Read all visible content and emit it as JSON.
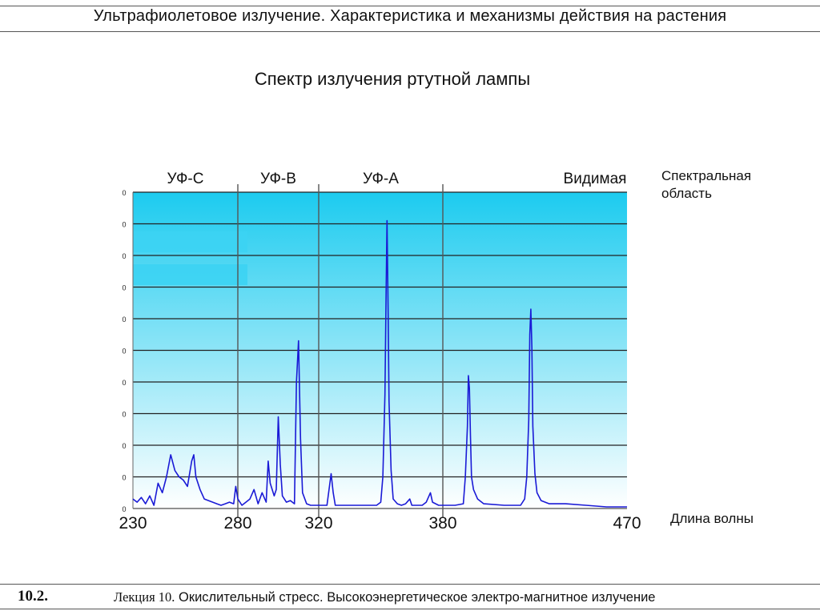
{
  "header": {
    "title": "Ультрафиолетовое излучение. Характеристика и механизмы действия на растения"
  },
  "chart_title": "Спектр излучения ртутной лампы",
  "labels": {
    "region_axis": "Спектральная\nобласть",
    "wavelength_axis": "Длина волны"
  },
  "footer": {
    "number": "10.2.",
    "lecture": "Лекция 10.",
    "topic": "Окислительный стресс. Высокоэнергетическое электро-магнитное излучение"
  },
  "colors": {
    "band_top": "#1ccbef",
    "band_bottom": "#ffffff",
    "spectrum_line": "#1a1ad6",
    "grid": "#222222"
  },
  "chart_data": {
    "type": "line",
    "title": "Спектр излучения ртутной лампы",
    "xlabel": "Длина волны",
    "ylabel": "",
    "xlim": [
      230,
      470
    ],
    "ylim": [
      0,
      10
    ],
    "x_ticks": [
      "230",
      "280",
      "320",
      "380",
      "470"
    ],
    "y_tick_label": "0",
    "y_ticks_count": 11,
    "grid": true,
    "regions": [
      {
        "name": "УФ-С",
        "from": 230,
        "to": 280
      },
      {
        "name": "УФ-В",
        "from": 280,
        "to": 320
      },
      {
        "name": "УФ-А",
        "from": 320,
        "to": 380
      },
      {
        "name": "Видимая",
        "from": 380,
        "to": 470
      }
    ],
    "series": [
      {
        "points": [
          [
            230,
            0.3
          ],
          [
            232,
            0.2
          ],
          [
            234,
            0.35
          ],
          [
            236,
            0.15
          ],
          [
            238,
            0.4
          ],
          [
            240,
            0.1
          ],
          [
            242,
            0.8
          ],
          [
            244,
            0.5
          ],
          [
            246,
            1.0
          ],
          [
            248,
            1.7
          ],
          [
            250,
            1.2
          ],
          [
            252,
            1.0
          ],
          [
            254,
            0.9
          ],
          [
            256,
            0.7
          ],
          [
            258,
            1.5
          ],
          [
            259,
            1.7
          ],
          [
            260,
            1.0
          ],
          [
            262,
            0.6
          ],
          [
            264,
            0.3
          ],
          [
            266,
            0.25
          ],
          [
            268,
            0.2
          ],
          [
            270,
            0.15
          ],
          [
            272,
            0.1
          ],
          [
            274,
            0.15
          ],
          [
            276,
            0.2
          ],
          [
            278,
            0.15
          ],
          [
            279,
            0.7
          ],
          [
            280,
            0.3
          ],
          [
            282,
            0.1
          ],
          [
            284,
            0.2
          ],
          [
            286,
            0.3
          ],
          [
            288,
            0.6
          ],
          [
            290,
            0.15
          ],
          [
            292,
            0.5
          ],
          [
            294,
            0.2
          ],
          [
            295,
            1.5
          ],
          [
            296,
            0.8
          ],
          [
            298,
            0.4
          ],
          [
            299,
            0.6
          ],
          [
            300,
            2.9
          ],
          [
            301,
            1.4
          ],
          [
            302,
            0.4
          ],
          [
            304,
            0.2
          ],
          [
            306,
            0.25
          ],
          [
            308,
            0.15
          ],
          [
            309,
            4.0
          ],
          [
            310,
            5.3
          ],
          [
            311,
            2.2
          ],
          [
            312,
            0.5
          ],
          [
            314,
            0.15
          ],
          [
            316,
            0.1
          ],
          [
            318,
            0.1
          ],
          [
            320,
            0.1
          ],
          [
            322,
            0.1
          ],
          [
            324,
            0.1
          ],
          [
            325,
            0.6
          ],
          [
            326,
            1.1
          ],
          [
            327,
            0.5
          ],
          [
            328,
            0.1
          ],
          [
            332,
            0.1
          ],
          [
            340,
            0.1
          ],
          [
            348,
            0.1
          ],
          [
            350,
            0.2
          ],
          [
            351,
            1.0
          ],
          [
            352,
            3.6
          ],
          [
            352.6,
            6.9
          ],
          [
            353,
            9.1
          ],
          [
            353.6,
            6.0
          ],
          [
            354,
            3.4
          ],
          [
            355,
            1.2
          ],
          [
            356,
            0.3
          ],
          [
            358,
            0.15
          ],
          [
            360,
            0.1
          ],
          [
            362,
            0.15
          ],
          [
            364,
            0.3
          ],
          [
            365,
            0.1
          ],
          [
            370,
            0.1
          ],
          [
            372,
            0.2
          ],
          [
            374,
            0.5
          ],
          [
            375,
            0.2
          ],
          [
            378,
            0.1
          ],
          [
            380,
            0.1
          ],
          [
            386,
            0.1
          ],
          [
            390,
            0.15
          ],
          [
            391,
            1.0
          ],
          [
            392,
            2.6
          ],
          [
            392.5,
            4.2
          ],
          [
            393,
            3.8
          ],
          [
            393.5,
            2.3
          ],
          [
            394,
            1.0
          ],
          [
            395,
            0.6
          ],
          [
            397,
            0.3
          ],
          [
            400,
            0.15
          ],
          [
            410,
            0.1
          ],
          [
            418,
            0.1
          ],
          [
            420,
            0.3
          ],
          [
            421,
            1.0
          ],
          [
            422,
            2.8
          ],
          [
            422.5,
            5.5
          ],
          [
            423,
            6.3
          ],
          [
            423.5,
            5.1
          ],
          [
            424,
            2.6
          ],
          [
            425,
            1.1
          ],
          [
            426,
            0.5
          ],
          [
            428,
            0.25
          ],
          [
            432,
            0.15
          ],
          [
            440,
            0.15
          ],
          [
            450,
            0.1
          ],
          [
            460,
            0.05
          ],
          [
            470,
            0.05
          ]
        ]
      }
    ]
  }
}
